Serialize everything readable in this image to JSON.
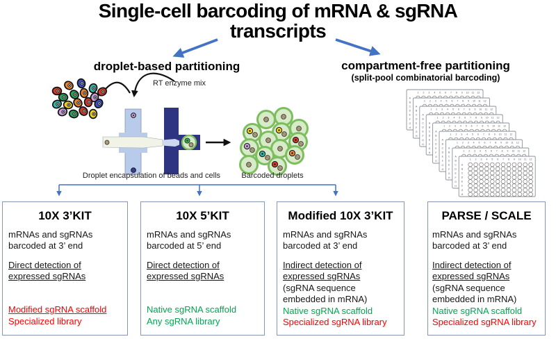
{
  "title": {
    "line1": "Single-cell barcoding of mRNA & sgRNA",
    "line2": "transcripts"
  },
  "branches": {
    "droplet": {
      "heading": "droplet-based partitioning"
    },
    "compartment_free": {
      "heading": "compartment-free partitioning",
      "subheading": "(split-pool combinatorial barcoding)"
    }
  },
  "illustration": {
    "rt_enzyme_label": "RT enzyme mix",
    "device_caption": "Droplet encapsulation of beads and cells",
    "droplets_caption": "Barcoded droplets",
    "icons": {
      "cells": "dissociated-cells-icon",
      "chip": "microfluidic-chip-icon",
      "droplets": "barcoded-droplets-icon",
      "plates": "well-plate-stack-icon"
    }
  },
  "colors": {
    "accent_blue": "#4472C4",
    "green": "#00A651",
    "red": "#FF0000",
    "box_border": "#8496B0"
  },
  "boxes": [
    {
      "title": "10X 3’KIT",
      "p1": "mRNAs and sgRNAs barcoded at 3’ end",
      "p2": "Direct detection of expressed sgRNAs",
      "note": "",
      "scaffold": "Modified sgRNA scaffold",
      "scaffold_class": "red underline",
      "library": "Specialized library",
      "library_class": "red"
    },
    {
      "title": "10X 5’KIT",
      "p1": "mRNAs and sgRNAs barcoded at 5’ end",
      "p2": "Direct detection of expressed sgRNAs",
      "note": "",
      "scaffold": "Native sgRNA scaffold",
      "scaffold_class": "green",
      "library": "Any  sgRNA library",
      "library_class": "green"
    },
    {
      "title": "Modified 10X 3’KIT",
      "p1": "mRNAs and sgRNAs barcoded at 3’ end",
      "p2": "Indirect detection of expressed sgRNAs",
      "note": "(sgRNA sequence embedded in mRNA)",
      "scaffold": "Native sgRNA scaffold",
      "scaffold_class": "green",
      "library": "Specialized sgRNA library",
      "library_class": "red"
    },
    {
      "title": "PARSE / SCALE",
      "p1": "mRNAs and sgRNAs barcoded at 3’ end",
      "p2": "Indirect detection of expressed sgRNAs",
      "note": "(sgRNA sequence embedded in mRNA)",
      "scaffold": "Native sgRNA scaffold",
      "scaffold_class": "green",
      "library": "Specialized sgRNA library",
      "library_class": "red"
    }
  ]
}
